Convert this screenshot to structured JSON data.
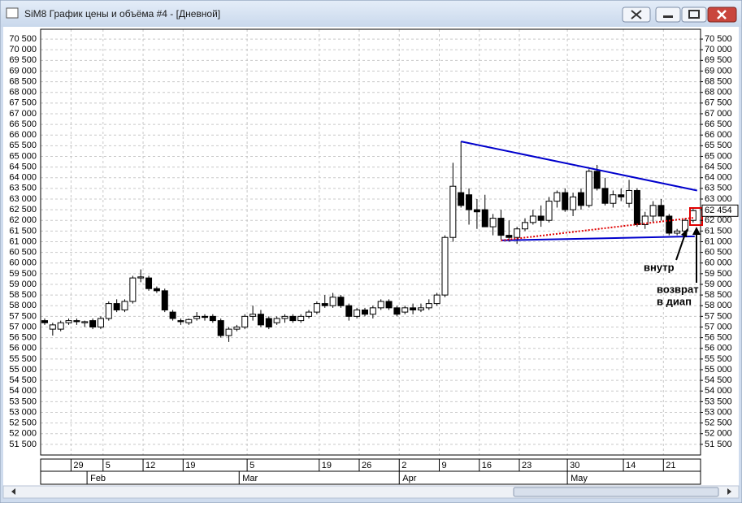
{
  "window": {
    "title": "SiM8 График цены и объёма #4 - [Дневной]"
  },
  "chart_data": {
    "type": "candlestick",
    "categories": [
      null,
      null,
      null,
      null,
      "29",
      null,
      null,
      null,
      "5",
      null,
      null,
      null,
      null,
      "12",
      null,
      null,
      null,
      null,
      "19",
      null,
      null,
      null,
      null,
      null,
      null,
      null,
      "5",
      null,
      null,
      null,
      null,
      null,
      null,
      null,
      null,
      "19",
      null,
      null,
      null,
      null,
      "26",
      null,
      null,
      null,
      null,
      "2",
      null,
      null,
      null,
      null,
      "9",
      null,
      null,
      null,
      null,
      "16",
      null,
      null,
      null,
      null,
      "23",
      null,
      null,
      null,
      null,
      null,
      "30",
      null,
      null,
      null,
      null,
      null,
      null,
      "14",
      null,
      null,
      null,
      null,
      "21",
      null,
      null,
      null
    ],
    "months": [
      null,
      null,
      null,
      null,
      null,
      null,
      "Feb",
      null,
      null,
      null,
      null,
      null,
      null,
      null,
      null,
      null,
      null,
      null,
      null,
      null,
      null,
      null,
      null,
      null,
      null,
      "Mar",
      null,
      null,
      null,
      null,
      null,
      null,
      null,
      null,
      null,
      null,
      null,
      null,
      null,
      null,
      null,
      null,
      null,
      null,
      null,
      "Apr",
      null,
      null,
      null,
      null,
      null,
      null,
      null,
      null,
      null,
      null,
      null,
      null,
      null,
      null,
      null,
      null,
      null,
      null,
      null,
      null,
      "May",
      null,
      null,
      null,
      null,
      null,
      null,
      null,
      null,
      null,
      null,
      null,
      null,
      null,
      null,
      null
    ],
    "open": [
      57300,
      56900,
      56900,
      57200,
      57300,
      57200,
      57300,
      57000,
      57400,
      58100,
      57800,
      58200,
      59300,
      59300,
      58800,
      58700,
      57700,
      57300,
      57200,
      57400,
      57500,
      57500,
      57300,
      56600,
      56900,
      57000,
      57500,
      57600,
      57400,
      57200,
      57400,
      57500,
      57300,
      57500,
      57700,
      58100,
      58000,
      58400,
      58000,
      57500,
      57800,
      57600,
      57900,
      58200,
      57900,
      57700,
      57900,
      57800,
      57900,
      58100,
      58500,
      61200,
      63300,
      63200,
      62500,
      62500,
      61700,
      62100,
      61300,
      61200,
      61600,
      61900,
      62200,
      62000,
      62900,
      63300,
      62500,
      63300,
      62700,
      64300,
      63500,
      62800,
      63200,
      62800,
      63400,
      61800,
      62200,
      62700,
      62200,
      61400,
      61500,
      62000
    ],
    "high": [
      57400,
      57200,
      57300,
      57400,
      57400,
      57300,
      57400,
      57500,
      58200,
      58300,
      58300,
      59400,
      59700,
      59400,
      58900,
      58800,
      57800,
      57400,
      57400,
      57700,
      57600,
      57600,
      57400,
      57000,
      57100,
      57600,
      58000,
      57800,
      57500,
      57500,
      57600,
      57600,
      57600,
      57800,
      58200,
      58500,
      58600,
      58500,
      58100,
      57900,
      57900,
      58000,
      58300,
      58300,
      58000,
      58000,
      58100,
      58100,
      58300,
      58600,
      61300,
      64700,
      65700,
      63500,
      63000,
      63200,
      62300,
      62500,
      62000,
      61700,
      62100,
      62500,
      62700,
      63100,
      63400,
      63500,
      63300,
      63500,
      64400,
      64600,
      64000,
      63400,
      63500,
      63900,
      63500,
      62400,
      62900,
      63000,
      62300,
      61600,
      62100,
      62600
    ],
    "low": [
      57100,
      56600,
      56800,
      57100,
      57100,
      57000,
      56900,
      56900,
      57300,
      57700,
      57700,
      58100,
      59100,
      58700,
      58600,
      57700,
      57300,
      57100,
      57100,
      57300,
      57300,
      57200,
      56500,
      56300,
      56800,
      56900,
      57300,
      57000,
      56900,
      57100,
      57200,
      57200,
      57200,
      57400,
      57600,
      57900,
      57900,
      57900,
      57300,
      57400,
      57500,
      57400,
      57800,
      57800,
      57500,
      57600,
      57600,
      57700,
      57800,
      58000,
      58400,
      61000,
      62600,
      61800,
      61600,
      61800,
      61300,
      61100,
      61000,
      60900,
      61500,
      61800,
      61700,
      61900,
      62600,
      62400,
      62200,
      62500,
      62600,
      63400,
      62700,
      62600,
      62900,
      62600,
      61700,
      61600,
      61900,
      62000,
      61300,
      61300,
      61400,
      61900
    ],
    "close": [
      57200,
      57100,
      57200,
      57300,
      57250,
      57250,
      57000,
      57400,
      58100,
      57800,
      58200,
      59300,
      59350,
      58800,
      58700,
      57800,
      57400,
      57250,
      57350,
      57500,
      57450,
      57300,
      56600,
      56900,
      57000,
      57500,
      57600,
      57100,
      57000,
      57400,
      57500,
      57300,
      57500,
      57700,
      58100,
      58000,
      58400,
      58000,
      57500,
      57800,
      57600,
      57900,
      58200,
      57900,
      57600,
      57900,
      57800,
      57900,
      58100,
      58500,
      61200,
      63600,
      62700,
      62500,
      62400,
      61700,
      62100,
      61300,
      61200,
      61600,
      61900,
      62200,
      62000,
      62900,
      63300,
      62500,
      63100,
      62700,
      64300,
      63500,
      62800,
      63200,
      63100,
      63400,
      61800,
      62200,
      62700,
      62200,
      61400,
      61500,
      62000,
      62454
    ],
    "up_color": "#ffffff",
    "down_color": "#000000",
    "ylim": [
      51000,
      70960
    ],
    "yticks": [
      {
        "value": 70500,
        "label": "70 500"
      },
      {
        "value": 70000,
        "label": "70 000"
      },
      {
        "value": 69500,
        "label": "69 500"
      },
      {
        "value": 69000,
        "label": "69 000"
      },
      {
        "value": 68500,
        "label": "68 500"
      },
      {
        "value": 68000,
        "label": "68 000"
      },
      {
        "value": 67500,
        "label": "67 500"
      },
      {
        "value": 67000,
        "label": "67 000"
      },
      {
        "value": 66500,
        "label": "66 500"
      },
      {
        "value": 66000,
        "label": "66 000"
      },
      {
        "value": 65500,
        "label": "65 500"
      },
      {
        "value": 65000,
        "label": "65 000"
      },
      {
        "value": 64500,
        "label": "64 500"
      },
      {
        "value": 64000,
        "label": "64 000"
      },
      {
        "value": 63500,
        "label": "63 500"
      },
      {
        "value": 63000,
        "label": "63 000"
      },
      {
        "value": 62500,
        "label": "62 500"
      },
      {
        "value": 62000,
        "label": "62 000"
      },
      {
        "value": 61500,
        "label": "61 500"
      },
      {
        "value": 61000,
        "label": "61 000"
      },
      {
        "value": 60500,
        "label": "60 500"
      },
      {
        "value": 60000,
        "label": "60 000"
      },
      {
        "value": 59500,
        "label": "59 500"
      },
      {
        "value": 59000,
        "label": "59 000"
      },
      {
        "value": 58500,
        "label": "58 500"
      },
      {
        "value": 58000,
        "label": "58 000"
      },
      {
        "value": 57500,
        "label": "57 500"
      },
      {
        "value": 57000,
        "label": "57 000"
      },
      {
        "value": 56500,
        "label": "56 500"
      },
      {
        "value": 56000,
        "label": "56 000"
      },
      {
        "value": 55500,
        "label": "55 500"
      },
      {
        "value": 55000,
        "label": "55 000"
      },
      {
        "value": 54500,
        "label": "54 500"
      },
      {
        "value": 54000,
        "label": "54 000"
      },
      {
        "value": 53500,
        "label": "53 500"
      },
      {
        "value": 53000,
        "label": "53 000"
      },
      {
        "value": 52500,
        "label": "52 500"
      },
      {
        "value": 52000,
        "label": "52 000"
      },
      {
        "value": 51500,
        "label": "51 500"
      }
    ],
    "grid": true,
    "last_label": {
      "value": 62454,
      "label": "62 454"
    },
    "trendlines": [
      {
        "x": [
          52,
          81.5
        ],
        "y": [
          65700,
          63400
        ],
        "color": "#0000cc",
        "style": "solid"
      },
      {
        "x": [
          57,
          81.2
        ],
        "y": [
          61060,
          61250
        ],
        "color": "#0000cc",
        "style": "solid"
      },
      {
        "x": [
          57,
          81
        ],
        "y": [
          61060,
          62120
        ],
        "color": "#e00000",
        "style": "dotted"
      }
    ],
    "annotations": [
      "внутр",
      "возврат",
      "в диап"
    ]
  }
}
